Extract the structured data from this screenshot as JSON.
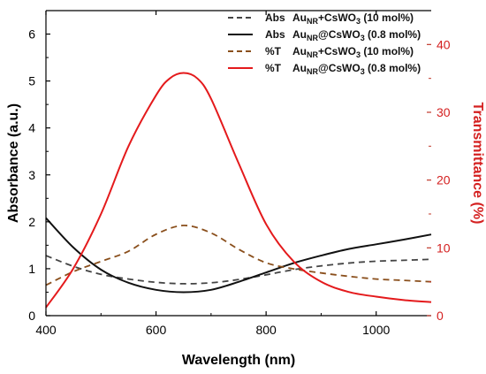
{
  "chart_data": {
    "type": "line",
    "xlabel": "Wavelength (nm)",
    "ylabel": "Absorbance (a.u.)",
    "y2label": "Transmittance (%)",
    "xlim": [
      400,
      1100
    ],
    "ylim": [
      0,
      6.5
    ],
    "y2lim": [
      0,
      45
    ],
    "xticks": [
      400,
      600,
      800,
      1000
    ],
    "yticks": [
      0,
      1,
      2,
      3,
      4,
      5,
      6
    ],
    "y2ticks": [
      0,
      10,
      20,
      30,
      40
    ],
    "grid": false,
    "legend_position": "top-right",
    "series": [
      {
        "name": "Abs  Au_NR+CsWO_3 (10 mol%)",
        "legend_prefix": "Abs",
        "legend_main": "Au",
        "legend_sub": "NR",
        "legend_mid": "+CsWO",
        "legend_sub2": "3",
        "legend_tail": " (10 mol%)",
        "axis": "left",
        "style": "dashed",
        "color": "#444444",
        "x": [
          400,
          450,
          500,
          550,
          600,
          650,
          700,
          750,
          800,
          850,
          900,
          950,
          1000,
          1050,
          1100
        ],
        "y": [
          1.28,
          1.05,
          0.88,
          0.78,
          0.71,
          0.68,
          0.7,
          0.77,
          0.87,
          0.98,
          1.06,
          1.12,
          1.16,
          1.18,
          1.2
        ]
      },
      {
        "name": "Abs  Au_NR@CsWO_3 (0.8 mol%)",
        "legend_prefix": "Abs",
        "legend_main": "Au",
        "legend_sub": "NR",
        "legend_mid": "@CsWO",
        "legend_sub2": "3",
        "legend_tail": " (0.8 mol%)",
        "axis": "left",
        "style": "solid",
        "color": "#111111",
        "x": [
          400,
          450,
          500,
          550,
          600,
          650,
          700,
          750,
          800,
          850,
          900,
          950,
          1000,
          1050,
          1100
        ],
        "y": [
          2.08,
          1.45,
          0.98,
          0.7,
          0.55,
          0.5,
          0.55,
          0.72,
          0.92,
          1.12,
          1.28,
          1.42,
          1.52,
          1.62,
          1.73
        ]
      },
      {
        "name": "%T  Au_NR+CsWO_3 (10 mol%)",
        "legend_prefix": "%T",
        "legend_main": "Au",
        "legend_sub": "NR",
        "legend_mid": "+CsWO",
        "legend_sub2": "3",
        "legend_tail": " (10 mol%)",
        "axis": "right",
        "style": "dashed",
        "color": "#8a4f1c",
        "x": [
          400,
          450,
          500,
          550,
          600,
          650,
          700,
          750,
          800,
          850,
          900,
          950,
          1000,
          1050,
          1100
        ],
        "y": [
          4.5,
          6.5,
          8.0,
          9.5,
          12.0,
          13.3,
          12.2,
          9.8,
          7.8,
          6.9,
          6.3,
          5.8,
          5.4,
          5.2,
          5.0
        ]
      },
      {
        "name": "%T  Au_NR@CsWO_3 (0.8 mol%)",
        "legend_prefix": "%T",
        "legend_main": "Au",
        "legend_sub": "NR",
        "legend_mid": "@CsWO",
        "legend_sub2": "3",
        "legend_tail": " (0.8 mol%)",
        "axis": "right",
        "style": "solid",
        "color": "#e41a1c",
        "x": [
          400,
          450,
          500,
          550,
          600,
          625,
          650,
          675,
          700,
          750,
          800,
          850,
          900,
          950,
          1000,
          1050,
          1100
        ],
        "y": [
          1.2,
          7.0,
          15.0,
          25.0,
          32.5,
          35.0,
          35.8,
          35.0,
          32.0,
          22.5,
          13.5,
          8.0,
          5.0,
          3.5,
          2.8,
          2.3,
          2.0
        ]
      }
    ]
  }
}
